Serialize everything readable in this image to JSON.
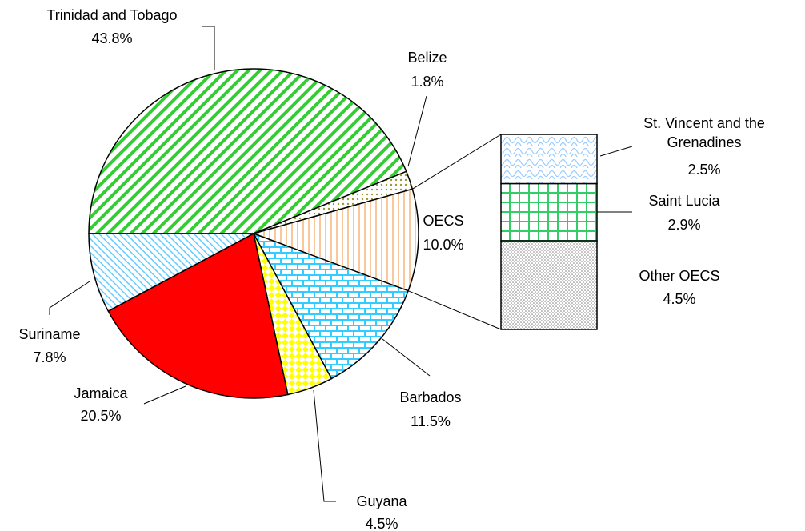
{
  "chart_data": {
    "type": "pie-of-bar",
    "categories": [
      "Trinidad and Tobago",
      "Belize",
      "OECS",
      "Barbados",
      "Guyana",
      "Jamaica",
      "Suriname"
    ],
    "values": [
      43.8,
      1.8,
      10.0,
      11.5,
      4.5,
      20.5,
      7.8
    ],
    "value_labels": [
      "43.8%",
      "1.8%",
      "10.0%",
      "11.5%",
      "4.5%",
      "20.5%",
      "7.8%"
    ],
    "colors": [
      "#33cc33",
      "#999933",
      "#f8c89c",
      "#33ccff",
      "#ffff00",
      "#ff0000",
      "#66ccff"
    ],
    "breakout": {
      "categories": [
        "St. Vincent and the Grenadines",
        "Saint Lucia",
        "Other OECS"
      ],
      "values": [
        2.5,
        2.9,
        4.5
      ],
      "value_labels": [
        "2.5%",
        "2.9%",
        "4.5%"
      ],
      "colors": [
        "#99ccff",
        "#33cc66",
        "#808080"
      ]
    }
  }
}
